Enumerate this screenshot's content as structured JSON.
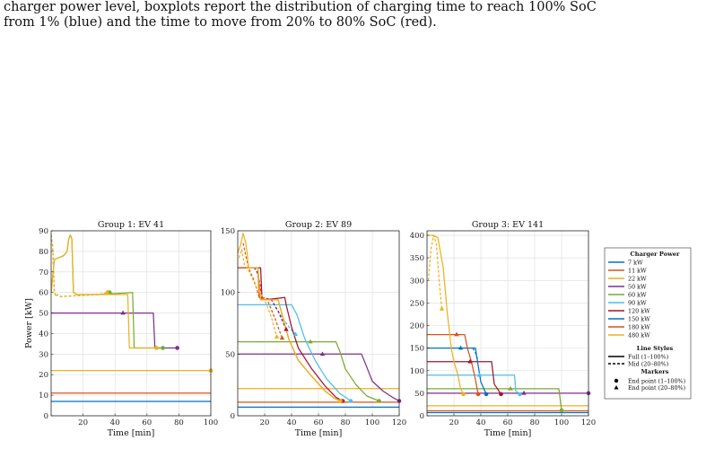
{
  "caption": {
    "line1": "charger power level, boxplots report the distribution of charging time to reach 100% SoC",
    "line2": "from 1% (blue) and the time to move from 20% to 80% SoC (red)."
  },
  "colors": {
    "7 kW": "#0072BD",
    "11 kW": "#D95319",
    "22 kW": "#EDB120",
    "50 kW": "#7E2F8E",
    "60 kW": "#77AC30",
    "90 kW": "#4DBEEE",
    "120 kW": "#A2142F",
    "150 kW": "#0072BD",
    "180 kW": "#D95319",
    "480 kW": "#EDB120"
  },
  "legend": {
    "title": "Charger Power",
    "entries": [
      "7 kW",
      "11 kW",
      "22 kW",
      "50 kW",
      "60 kW",
      "90 kW",
      "120 kW",
      "150 kW",
      "180 kW",
      "480 kW"
    ],
    "line_styles_title": "Line Styles",
    "full_label": "Full (1–100%)",
    "mid_label": "Mid (20–80%)",
    "markers_title": "Markers",
    "end_full_label": "End point (1–100%)",
    "end_mid_label": "End point (20–80%)"
  },
  "chart_data": [
    {
      "type": "line",
      "title": "Group 1: EV 41",
      "xlabel": "Time [min]",
      "ylabel": "Power [kW]",
      "xlim": [
        0,
        100
      ],
      "ylim": [
        0,
        90
      ],
      "xticks": [
        20,
        40,
        60,
        80,
        100
      ],
      "yticks": [
        0,
        10,
        20,
        30,
        40,
        50,
        60,
        70,
        80,
        90
      ],
      "grid": true,
      "series": [
        {
          "charger": "7 kW",
          "style": "full",
          "x": [
            0,
            100
          ],
          "y": [
            7,
            7
          ]
        },
        {
          "charger": "11 kW",
          "style": "full",
          "x": [
            0,
            100
          ],
          "y": [
            11,
            11
          ]
        },
        {
          "charger": "22 kW",
          "style": "full",
          "x": [
            0,
            100
          ],
          "y": [
            22,
            22
          ],
          "end": [
            100,
            22
          ],
          "mid_end": [
            100,
            22
          ]
        },
        {
          "charger": "50 kW",
          "style": "full",
          "x": [
            0,
            64,
            65,
            79
          ],
          "y": [
            50,
            50,
            33,
            33
          ],
          "end": [
            79,
            33
          ],
          "mid_end": [
            45,
            50
          ]
        },
        {
          "charger": "60 kW",
          "style": "full",
          "x": [
            0,
            2,
            5,
            8,
            10,
            11,
            12,
            13,
            14,
            16,
            30,
            51,
            52,
            70
          ],
          "y": [
            60,
            76,
            77,
            78,
            80,
            86,
            88,
            86,
            60,
            59,
            59,
            60,
            33,
            33
          ],
          "end": [
            70,
            33
          ],
          "mid_end": [
            37,
            60
          ]
        },
        {
          "charger": "60 kW",
          "style": "mid",
          "x": [
            0,
            1,
            2,
            3,
            4,
            6,
            30,
            36
          ],
          "y": [
            88,
            82,
            60,
            58,
            59,
            58,
            59,
            60
          ],
          "mid_end": [
            36,
            60
          ]
        },
        {
          "charger": "480 kW",
          "style": "full",
          "x": [
            0,
            2,
            5,
            8,
            10,
            11,
            12,
            13,
            14,
            16,
            30,
            48,
            49,
            66
          ],
          "y": [
            60,
            76,
            77,
            78,
            80,
            86,
            88,
            86,
            60,
            59,
            59,
            59,
            33,
            33
          ],
          "end": [
            66,
            33
          ],
          "mid_end": [
            35,
            60
          ]
        },
        {
          "charger": "480 kW",
          "style": "mid",
          "x": [
            0,
            1,
            2,
            3,
            4,
            6,
            30,
            35
          ],
          "y": [
            88,
            82,
            60,
            58,
            59,
            58,
            59,
            60
          ],
          "mid_end": [
            35,
            60
          ]
        }
      ]
    },
    {
      "type": "line",
      "title": "Group 2: EV 89",
      "xlabel": "Time [min]",
      "ylabel": "",
      "xlim": [
        0,
        120
      ],
      "ylim": [
        0,
        150
      ],
      "xticks": [
        20,
        40,
        60,
        80,
        100,
        120
      ],
      "yticks": [
        0,
        50,
        100,
        150
      ],
      "grid": true,
      "series": [
        {
          "charger": "7 kW",
          "style": "full",
          "x": [
            0,
            120
          ],
          "y": [
            7,
            7
          ]
        },
        {
          "charger": "11 kW",
          "style": "full",
          "x": [
            0,
            120
          ],
          "y": [
            11,
            11
          ]
        },
        {
          "charger": "22 kW",
          "style": "full",
          "x": [
            0,
            120
          ],
          "y": [
            22,
            22
          ]
        },
        {
          "charger": "50 kW",
          "style": "full",
          "x": [
            0,
            92,
            95,
            100,
            108,
            115,
            120
          ],
          "y": [
            50,
            50,
            42,
            28,
            20,
            15,
            12
          ],
          "end": [
            120,
            12
          ],
          "mid_end": [
            63,
            50
          ]
        },
        {
          "charger": "60 kW",
          "style": "full",
          "x": [
            0,
            73,
            76,
            80,
            88,
            96,
            105
          ],
          "y": [
            60,
            60,
            52,
            38,
            25,
            16,
            12
          ],
          "end": [
            105,
            12
          ],
          "mid_end": [
            54,
            60
          ]
        },
        {
          "charger": "90 kW",
          "style": "full",
          "x": [
            0,
            40,
            44,
            50,
            58,
            66,
            76,
            84
          ],
          "y": [
            90,
            90,
            82,
            62,
            44,
            30,
            18,
            12
          ],
          "end": [
            84,
            12
          ],
          "mid_end": [
            43,
            66
          ]
        },
        {
          "charger": "90 kW",
          "style": "mid",
          "x": [
            28,
            33,
            38,
            43
          ],
          "y": [
            88,
            80,
            72,
            66
          ]
        },
        {
          "charger": "120 kW",
          "style": "full",
          "x": [
            0,
            17,
            18,
            20,
            35,
            36,
            40,
            45,
            55,
            65,
            73,
            78
          ],
          "y": [
            120,
            120,
            96,
            94,
            96,
            90,
            72,
            55,
            38,
            24,
            15,
            12
          ],
          "end": [
            78,
            12
          ],
          "mid_end": [
            36,
            70
          ]
        },
        {
          "charger": "120 kW",
          "style": "mid",
          "x": [
            12,
            14,
            16,
            18,
            25,
            30,
            36
          ],
          "y": [
            120,
            118,
            110,
            96,
            94,
            85,
            70
          ]
        },
        {
          "charger": "180 kW",
          "style": "full",
          "x": [
            0,
            15,
            16,
            18,
            30,
            33,
            38,
            45,
            55,
            65,
            72,
            77
          ],
          "y": [
            120,
            120,
            96,
            94,
            94,
            82,
            62,
            45,
            32,
            20,
            14,
            12
          ],
          "end": [
            77,
            12
          ],
          "mid_end": [
            33,
            63
          ]
        },
        {
          "charger": "180 kW",
          "style": "mid",
          "x": [
            4,
            8,
            12,
            16,
            22,
            28,
            33
          ],
          "y": [
            140,
            120,
            110,
            96,
            94,
            78,
            63
          ]
        },
        {
          "charger": "480 kW",
          "style": "full",
          "x": [
            0,
            2,
            4,
            6,
            7,
            8,
            15,
            17,
            30,
            33,
            38,
            45,
            55,
            65,
            72,
            76
          ],
          "y": [
            132,
            138,
            148,
            140,
            132,
            120,
            120,
            94,
            94,
            82,
            62,
            45,
            32,
            20,
            14,
            12
          ],
          "end": [
            76,
            12
          ],
          "mid_end": [
            29,
            64
          ]
        },
        {
          "charger": "480 kW",
          "style": "mid",
          "x": [
            1,
            3,
            5,
            8,
            14,
            20,
            25,
            29
          ],
          "y": [
            128,
            135,
            122,
            118,
            104,
            94,
            80,
            64
          ]
        }
      ]
    },
    {
      "type": "line",
      "title": "Group 3: EV 141",
      "xlabel": "Time [min]",
      "ylabel": "",
      "xlim": [
        0,
        120
      ],
      "ylim": [
        0,
        410
      ],
      "xticks": [
        20,
        40,
        60,
        80,
        100,
        120
      ],
      "yticks": [
        0,
        50,
        100,
        150,
        200,
        250,
        300,
        350,
        400
      ],
      "grid": true,
      "series": [
        {
          "charger": "7 kW",
          "style": "full",
          "x": [
            0,
            120
          ],
          "y": [
            7,
            7
          ]
        },
        {
          "charger": "11 kW",
          "style": "full",
          "x": [
            0,
            120
          ],
          "y": [
            11,
            11
          ]
        },
        {
          "charger": "22 kW",
          "style": "full",
          "x": [
            0,
            120
          ],
          "y": [
            22,
            22
          ]
        },
        {
          "charger": "50 kW",
          "style": "full",
          "x": [
            0,
            120
          ],
          "y": [
            50,
            50
          ],
          "end": [
            120,
            50
          ],
          "mid_end": [
            72,
            50
          ]
        },
        {
          "charger": "60 kW",
          "style": "full",
          "x": [
            0,
            98,
            100
          ],
          "y": [
            60,
            60,
            12
          ],
          "end": [
            100,
            12
          ],
          "mid_end": [
            62,
            60
          ]
        },
        {
          "charger": "90 kW",
          "style": "full",
          "x": [
            0,
            65,
            66,
            69
          ],
          "y": [
            90,
            90,
            55,
            48
          ],
          "end": [
            69,
            48
          ],
          "mid_end": [
            39,
            90
          ]
        },
        {
          "charger": "120 kW",
          "style": "full",
          "x": [
            0,
            48,
            50,
            55
          ],
          "y": [
            120,
            120,
            70,
            48
          ],
          "end": [
            55,
            48
          ],
          "mid_end": [
            32,
            120
          ]
        },
        {
          "charger": "150 kW",
          "style": "full",
          "x": [
            0,
            36,
            37,
            40,
            44
          ],
          "y": [
            150,
            150,
            130,
            75,
            48
          ],
          "end": [
            44,
            48
          ],
          "mid_end": [
            25,
            150
          ]
        },
        {
          "charger": "150 kW",
          "style": "mid",
          "x": [
            34,
            36,
            37,
            38
          ],
          "y": [
            150,
            140,
            130,
            125
          ]
        },
        {
          "charger": "180 kW",
          "style": "full",
          "x": [
            0,
            28,
            30,
            33,
            36,
            38
          ],
          "y": [
            180,
            180,
            150,
            120,
            80,
            48
          ],
          "end": [
            38,
            48
          ],
          "mid_end": [
            22,
            180
          ]
        },
        {
          "charger": "480 kW",
          "style": "full",
          "x": [
            0,
            4,
            8,
            12,
            15,
            18,
            20,
            23,
            25,
            27
          ],
          "y": [
            400,
            400,
            395,
            330,
            230,
            150,
            120,
            90,
            60,
            48
          ],
          "end": [
            27,
            48
          ],
          "mid_end": [
            11,
            237
          ]
        },
        {
          "charger": "480 kW",
          "style": "mid",
          "x": [
            1,
            3,
            5,
            7,
            9,
            11
          ],
          "y": [
            300,
            370,
            400,
            380,
            300,
            237
          ]
        }
      ]
    }
  ]
}
